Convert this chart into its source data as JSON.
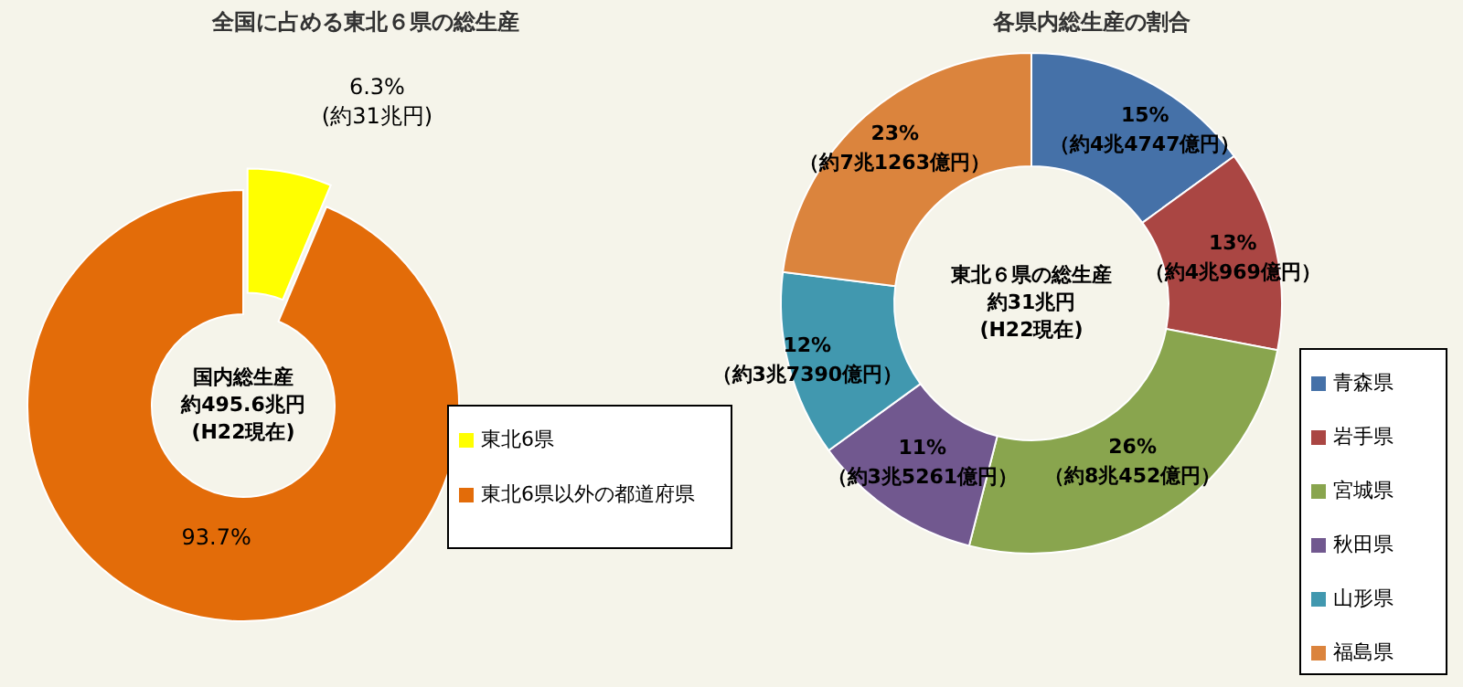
{
  "chart_data": [
    {
      "type": "donut",
      "title": "全国に占める東北６県の総生産",
      "categories": [
        "東北6県",
        "東北6県以外の都道府県"
      ],
      "values": [
        6.3,
        93.7
      ],
      "colors": [
        "#ffff00",
        "#e36c09"
      ],
      "value_labels": [
        "6.3%\n(約31兆円)",
        "93.7%"
      ],
      "annotations": [
        "国内総生産",
        "約495.6兆円",
        "(H22現在)"
      ],
      "legend": "bottom right"
    },
    {
      "type": "donut",
      "title": "各県内総生産の割合",
      "categories": [
        "青森県",
        "岩手県",
        "宮城県",
        "秋田県",
        "山形県",
        "福島県"
      ],
      "values": [
        15,
        13,
        26,
        11,
        12,
        23
      ],
      "colors": [
        "#4571a8",
        "#aa4643",
        "#89a54e",
        "#71588f",
        "#4198af",
        "#db843d"
      ],
      "value_labels": [
        "15%\n（約4兆4747億円）",
        "13%\n（約4兆969億円）",
        "26%\n（約8兆452億円）",
        "11%\n（約3兆5261億円）",
        "12%\n（約3兆7390億円）",
        "23%\n（約7兆1263億円）"
      ],
      "annotations": [
        "東北６県の総生産",
        "約31兆円",
        "(H22現在)"
      ],
      "legend": "bottom right"
    }
  ]
}
